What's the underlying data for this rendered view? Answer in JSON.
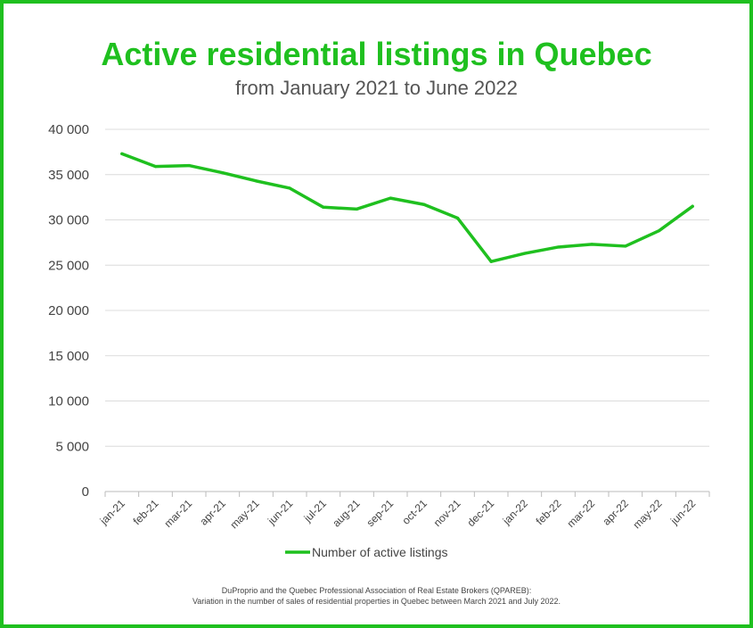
{
  "colors": {
    "accent": "#1fc01f",
    "grid": "#dcdcdc",
    "text": "#444444"
  },
  "chart_data": {
    "type": "line",
    "title": "Active residential listings in Quebec",
    "subtitle": "from January 2021 to June 2022",
    "categories": [
      "jan-21",
      "feb-21",
      "mar-21",
      "apr-21",
      "may-21",
      "jun-21",
      "jul-21",
      "aug-21",
      "sep-21",
      "oct-21",
      "nov-21",
      "dec-21",
      "jan-22",
      "feb-22",
      "mar-22",
      "apr-22",
      "may-22",
      "jun-22"
    ],
    "series": [
      {
        "name": "Number of active listings",
        "values": [
          37300,
          35900,
          36000,
          35200,
          34300,
          33500,
          31400,
          31200,
          32400,
          31700,
          30200,
          25400,
          26300,
          27000,
          27300,
          27100,
          28800,
          31500
        ]
      }
    ],
    "ylim": [
      0,
      40000
    ],
    "yticks": [
      0,
      5000,
      10000,
      15000,
      20000,
      25000,
      30000,
      35000,
      40000
    ],
    "ytick_labels": [
      "0",
      "5 000",
      "10 000",
      "15 000",
      "20 000",
      "25 000",
      "30 000",
      "35 000",
      "40 000"
    ],
    "xlabel": "",
    "ylabel": "",
    "grid": true,
    "legend": "bottom-center"
  },
  "source": {
    "line1": "DuProprio and the Quebec Professional Association of Real Estate Brokers (QPAREB):",
    "line2": "Variation in the number of sales of residential properties in Quebec between March 2021 and July 2022."
  }
}
